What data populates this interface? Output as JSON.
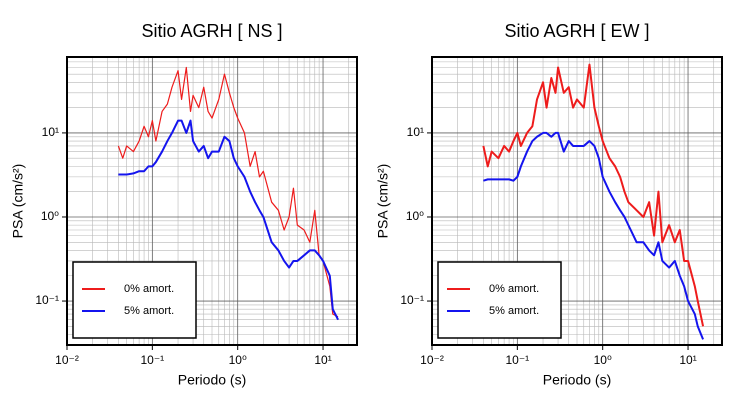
{
  "chart_data": [
    {
      "type": "line",
      "title": "Sitio AGRH [ NS ]",
      "x_label": "Periodo (s)",
      "y_label": "PSA (cm/s²)",
      "xscale": "log",
      "yscale": "log",
      "grid": true,
      "legend_position": "lower left",
      "xlim": [
        0.01,
        25
      ],
      "ylim": [
        0.03,
        80
      ],
      "xticks": [
        {
          "value": 0.01,
          "label": "10⁻²"
        },
        {
          "value": 0.1,
          "label": "10⁻¹"
        },
        {
          "value": 1,
          "label": "10⁰"
        },
        {
          "value": 10,
          "label": "10¹"
        }
      ],
      "yticks": [
        {
          "value": 0.1,
          "label": "10⁻¹"
        },
        {
          "value": 1,
          "label": "10⁰"
        },
        {
          "value": 10,
          "label": "10¹"
        }
      ],
      "x": [
        0.04,
        0.045,
        0.05,
        0.06,
        0.07,
        0.08,
        0.09,
        0.1,
        0.11,
        0.13,
        0.15,
        0.17,
        0.2,
        0.22,
        0.25,
        0.28,
        0.3,
        0.35,
        0.4,
        0.45,
        0.5,
        0.6,
        0.7,
        0.8,
        0.9,
        1.0,
        1.2,
        1.4,
        1.6,
        1.8,
        2.0,
        2.5,
        3.0,
        3.5,
        4.0,
        4.5,
        5.0,
        6.0,
        7.0,
        8.0,
        9.0,
        10,
        12,
        13,
        15
      ],
      "series": [
        {
          "name": "0% amort.",
          "color": "#ee1c1c",
          "width": 1.2,
          "values": [
            7,
            5,
            7,
            6,
            8,
            12,
            9,
            14,
            8,
            18,
            22,
            35,
            55,
            25,
            60,
            18,
            28,
            20,
            35,
            18,
            15,
            25,
            50,
            30,
            20,
            15,
            10,
            4,
            6,
            3,
            3.5,
            1.5,
            1.2,
            0.7,
            1.0,
            2.2,
            0.8,
            0.7,
            0.5,
            1.2,
            0.35,
            0.3,
            0.15,
            0.07,
            0.065
          ]
        },
        {
          "name": "5% amort.",
          "color": "#1414ee",
          "width": 2,
          "values": [
            3.2,
            3.2,
            3.2,
            3.3,
            3.5,
            3.5,
            4,
            4,
            4.5,
            6,
            8,
            10,
            14,
            14,
            10,
            14,
            8,
            6,
            7,
            5,
            6,
            6,
            9,
            8,
            5,
            4,
            3,
            2,
            1.5,
            1.2,
            1,
            0.5,
            0.4,
            0.3,
            0.25,
            0.3,
            0.3,
            0.35,
            0.4,
            0.4,
            0.35,
            0.3,
            0.2,
            0.08,
            0.06
          ]
        }
      ]
    },
    {
      "type": "line",
      "title": "Sitio AGRH [ EW ]",
      "x_label": "Periodo (s)",
      "y_label": "PSA (cm/s²)",
      "xscale": "log",
      "yscale": "log",
      "grid": true,
      "legend_position": "lower left",
      "xlim": [
        0.01,
        25
      ],
      "ylim": [
        0.03,
        80
      ],
      "xticks": [
        {
          "value": 0.01,
          "label": "10⁻²"
        },
        {
          "value": 0.1,
          "label": "10⁻¹"
        },
        {
          "value": 1,
          "label": "10⁰"
        },
        {
          "value": 10,
          "label": "10¹"
        }
      ],
      "yticks": [
        {
          "value": 0.1,
          "label": "10⁻¹"
        },
        {
          "value": 1,
          "label": "10⁰"
        },
        {
          "value": 10,
          "label": "10¹"
        }
      ],
      "x": [
        0.04,
        0.045,
        0.05,
        0.06,
        0.07,
        0.08,
        0.09,
        0.1,
        0.11,
        0.13,
        0.15,
        0.17,
        0.2,
        0.22,
        0.25,
        0.28,
        0.3,
        0.35,
        0.4,
        0.45,
        0.5,
        0.6,
        0.7,
        0.8,
        0.9,
        1.0,
        1.2,
        1.4,
        1.6,
        1.8,
        2.0,
        2.5,
        3.0,
        3.5,
        4.0,
        4.5,
        5.0,
        6.0,
        7.0,
        8.0,
        9.0,
        10,
        12,
        13,
        15
      ],
      "series": [
        {
          "name": "0% amort.",
          "color": "#ee1c1c",
          "width": 2,
          "values": [
            7,
            4,
            6,
            5,
            7,
            6,
            8,
            10,
            7,
            10,
            12,
            25,
            40,
            20,
            45,
            30,
            60,
            30,
            35,
            20,
            25,
            20,
            65,
            20,
            12,
            8,
            5,
            4,
            3,
            2,
            1.5,
            1.2,
            1.0,
            1.5,
            0.6,
            2,
            0.5,
            0.8,
            0.5,
            0.7,
            0.3,
            0.3,
            0.15,
            0.1,
            0.05
          ]
        },
        {
          "name": "5% amort.",
          "color": "#1414ee",
          "width": 2,
          "values": [
            2.7,
            2.8,
            2.8,
            2.8,
            2.8,
            2.8,
            2.7,
            3,
            4,
            6,
            8,
            9,
            10,
            10,
            9,
            10,
            10,
            6,
            8,
            7,
            7,
            7,
            8,
            7,
            5,
            3,
            2,
            1.5,
            1.2,
            1,
            0.8,
            0.5,
            0.5,
            0.4,
            0.35,
            0.5,
            0.3,
            0.25,
            0.3,
            0.2,
            0.15,
            0.1,
            0.07,
            0.05,
            0.035
          ]
        }
      ]
    }
  ]
}
